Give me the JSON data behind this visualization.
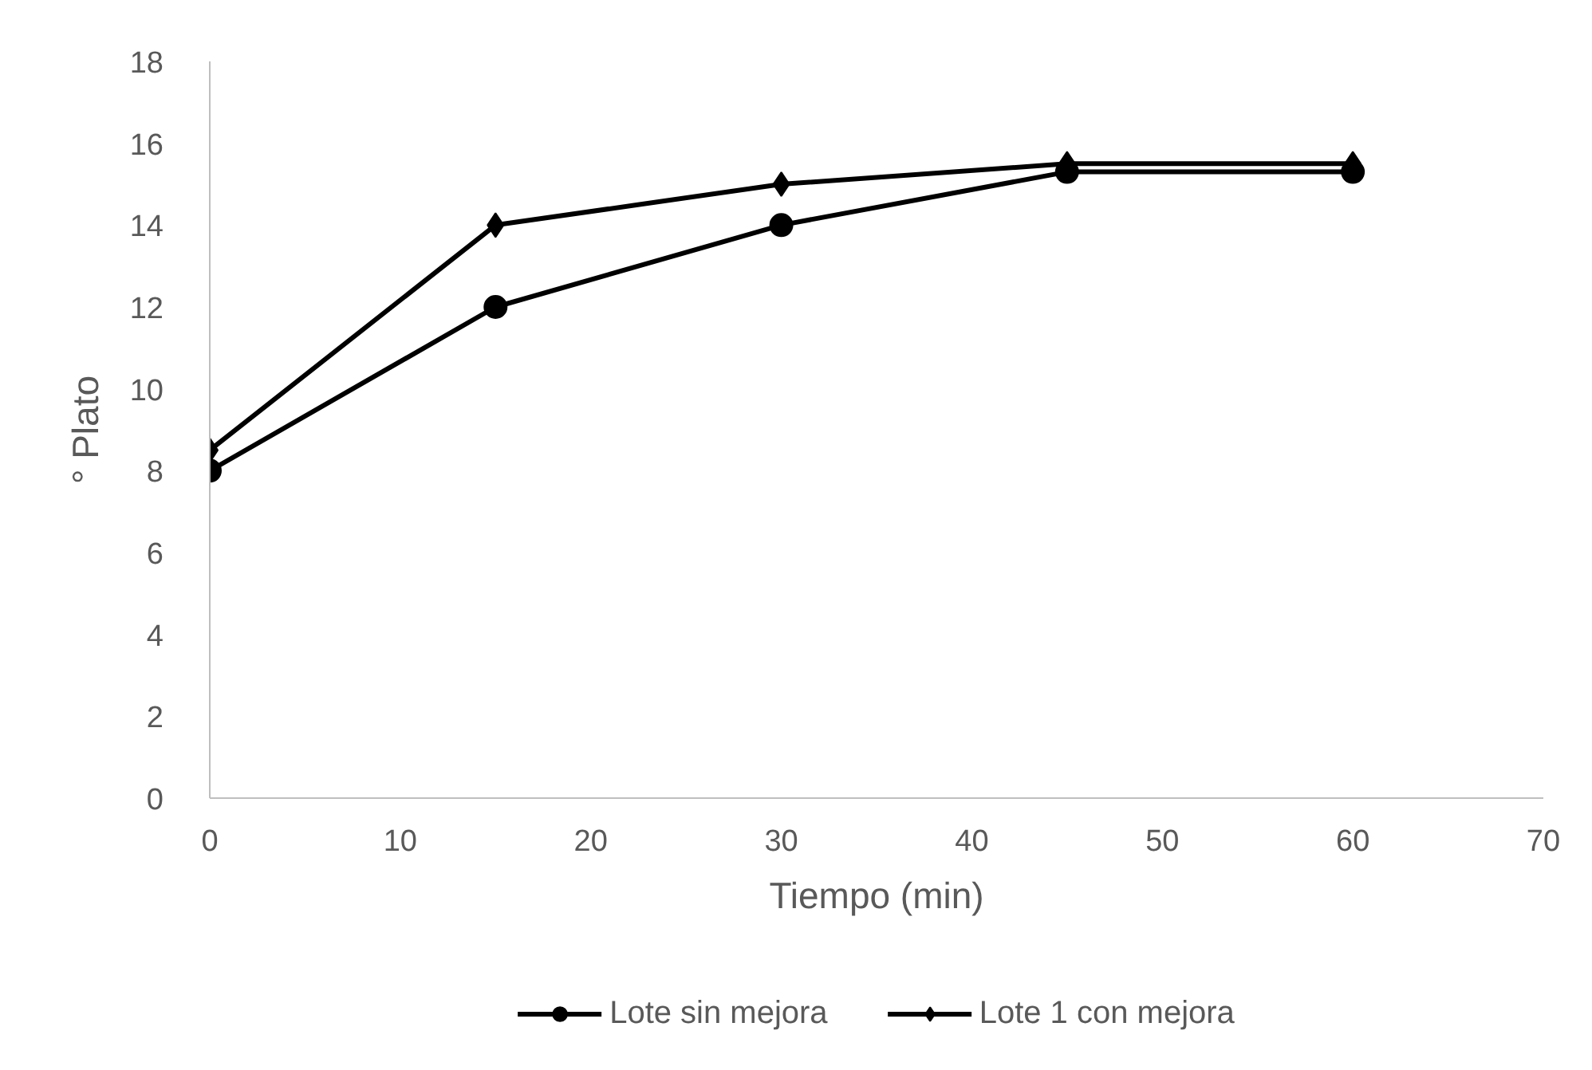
{
  "chart_data": {
    "type": "line",
    "xlabel": "Tiempo (min)",
    "ylabel": "° Plato",
    "x": [
      0,
      15,
      30,
      45,
      60
    ],
    "series": [
      {
        "name": "Lote sin mejora",
        "color": "#000000",
        "values": [
          8,
          12,
          14,
          15.3,
          15.3
        ],
        "marker": "circle"
      },
      {
        "name": "Lote 1 con mejora",
        "color": "#000000",
        "values": [
          8.5,
          14,
          15,
          15.5,
          15.5
        ],
        "marker": "diamond"
      }
    ],
    "xlim": [
      0,
      70
    ],
    "xticks": [
      0,
      10,
      20,
      30,
      40,
      50,
      60,
      70
    ],
    "ylim": [
      0,
      18
    ],
    "yticks": [
      0,
      2,
      4,
      6,
      8,
      10,
      12,
      14,
      16,
      18
    ],
    "grid": false,
    "legend": "bottom",
    "line_style": "solid"
  }
}
